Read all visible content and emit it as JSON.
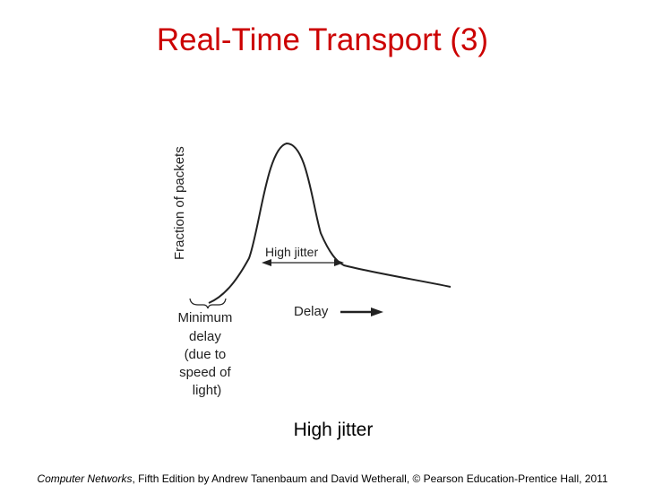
{
  "slide": {
    "title": "Real-Time Transport (3)",
    "caption": "High jitter"
  },
  "figure": {
    "y_axis_label": "Fraction of packets",
    "spread_label": "High jitter",
    "x_axis_label": "Delay",
    "min_delay_label": [
      "Minimum",
      "delay",
      "(due to",
      "speed of",
      "light)"
    ]
  },
  "footer": {
    "book_title": "Computer Networks",
    "rest": ", Fifth Edition by Andrew Tanenbaum and David Wetherall, © Pearson Education-Prentice Hall, 2011"
  },
  "colors": {
    "title": "#cc0000",
    "figure_ink": "#222222"
  }
}
